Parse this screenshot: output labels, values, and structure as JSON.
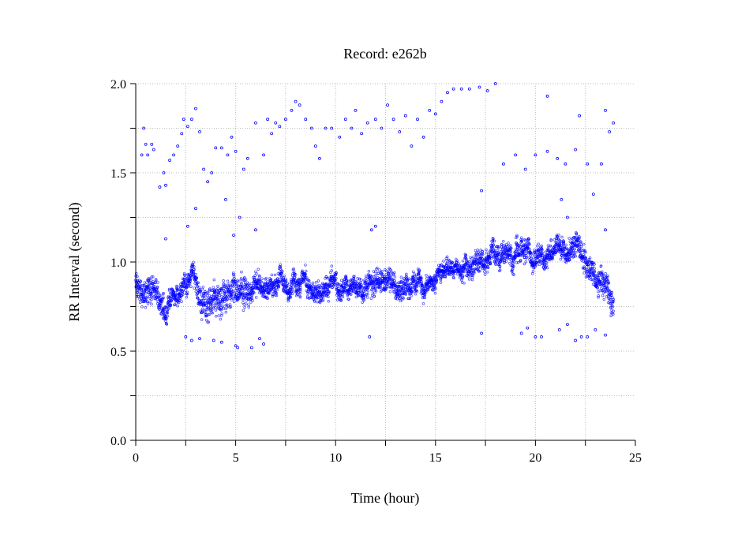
{
  "chart_data": {
    "type": "scatter",
    "title": "Record:  e262b",
    "xlabel": "Time (hour)",
    "ylabel": "RR Interval (second)",
    "xlim": [
      0,
      25
    ],
    "ylim": [
      0.0,
      2.0
    ],
    "x_ticks": [
      "0",
      "5",
      "10",
      "15",
      "20",
      "25"
    ],
    "x_tick_values": [
      0,
      5,
      10,
      15,
      20,
      25
    ],
    "y_ticks": [
      "0.0",
      "0.5",
      "1.0",
      "1.5",
      "2.0"
    ],
    "y_tick_values": [
      0,
      0.5,
      1.0,
      1.5,
      2.0
    ],
    "grid": true,
    "grid_x_step": 2.5,
    "grid_y_step": 0.25,
    "marker_color": "#0000ff",
    "trend_note": "dense RR series: [hour, mean RR, half-spread]",
    "trend": [
      [
        0,
        0.86,
        0.09
      ],
      [
        0.3,
        0.82,
        0.09
      ],
      [
        0.7,
        0.83,
        0.09
      ],
      [
        1.0,
        0.84,
        0.08
      ],
      [
        1.3,
        0.7,
        0.09
      ],
      [
        1.6,
        0.73,
        0.07
      ],
      [
        2.0,
        0.8,
        0.06
      ],
      [
        2.5,
        0.88,
        0.06
      ],
      [
        3.0,
        0.9,
        0.07
      ],
      [
        3.3,
        0.75,
        0.1
      ],
      [
        4.0,
        0.78,
        0.1
      ],
      [
        4.5,
        0.79,
        0.1
      ],
      [
        5.0,
        0.83,
        0.1
      ],
      [
        5.5,
        0.8,
        0.1
      ],
      [
        6.0,
        0.85,
        0.07
      ],
      [
        7.0,
        0.86,
        0.06
      ],
      [
        8.0,
        0.9,
        0.06
      ],
      [
        8.5,
        0.88,
        0.06
      ],
      [
        9.0,
        0.79,
        0.06
      ],
      [
        9.5,
        0.85,
        0.06
      ],
      [
        10.0,
        0.85,
        0.06
      ],
      [
        11.0,
        0.87,
        0.06
      ],
      [
        12.0,
        0.88,
        0.07
      ],
      [
        12.5,
        0.93,
        0.07
      ],
      [
        13.0,
        0.88,
        0.07
      ],
      [
        14.0,
        0.87,
        0.06
      ],
      [
        14.5,
        0.86,
        0.05
      ],
      [
        15.0,
        0.93,
        0.05
      ],
      [
        16.0,
        0.97,
        0.05
      ],
      [
        17.0,
        1.02,
        0.07
      ],
      [
        18.0,
        1.02,
        0.07
      ],
      [
        19.0,
        1.07,
        0.08
      ],
      [
        20.0,
        1.05,
        0.07
      ],
      [
        21.0,
        1.07,
        0.06
      ],
      [
        22.0,
        1.07,
        0.07
      ],
      [
        22.5,
        1.02,
        0.08
      ],
      [
        23.0,
        0.95,
        0.09
      ],
      [
        23.5,
        0.86,
        0.09
      ],
      [
        23.9,
        0.8,
        0.08
      ]
    ],
    "outliers": [
      [
        0.3,
        1.6
      ],
      [
        0.4,
        1.75
      ],
      [
        0.5,
        1.66
      ],
      [
        0.6,
        1.6
      ],
      [
        0.8,
        1.66
      ],
      [
        0.9,
        1.63
      ],
      [
        1.2,
        1.42
      ],
      [
        1.4,
        1.5
      ],
      [
        1.5,
        1.43
      ],
      [
        1.7,
        1.57
      ],
      [
        1.9,
        1.6
      ],
      [
        2.1,
        1.65
      ],
      [
        2.3,
        1.72
      ],
      [
        2.4,
        1.8
      ],
      [
        2.6,
        1.76
      ],
      [
        2.8,
        1.8
      ],
      [
        3.0,
        1.86
      ],
      [
        3.2,
        1.73
      ],
      [
        3.4,
        1.52
      ],
      [
        3.6,
        1.45
      ],
      [
        3.8,
        1.5
      ],
      [
        4.0,
        1.64
      ],
      [
        4.3,
        1.64
      ],
      [
        4.6,
        1.6
      ],
      [
        4.8,
        1.7
      ],
      [
        5.0,
        1.62
      ],
      [
        5.4,
        1.52
      ],
      [
        5.6,
        1.58
      ],
      [
        6.0,
        1.78
      ],
      [
        6.4,
        1.6
      ],
      [
        6.6,
        1.8
      ],
      [
        6.8,
        1.72
      ],
      [
        7.0,
        1.78
      ],
      [
        7.2,
        1.76
      ],
      [
        7.5,
        1.8
      ],
      [
        7.8,
        1.85
      ],
      [
        8.0,
        1.9
      ],
      [
        8.2,
        1.88
      ],
      [
        8.5,
        1.8
      ],
      [
        8.8,
        1.75
      ],
      [
        9.0,
        1.65
      ],
      [
        9.2,
        1.58
      ],
      [
        9.5,
        1.75
      ],
      [
        9.8,
        1.75
      ],
      [
        10.2,
        1.7
      ],
      [
        10.5,
        1.8
      ],
      [
        10.8,
        1.75
      ],
      [
        11.0,
        1.85
      ],
      [
        11.3,
        1.72
      ],
      [
        11.6,
        1.78
      ],
      [
        12.0,
        1.8
      ],
      [
        12.3,
        1.75
      ],
      [
        12.6,
        1.88
      ],
      [
        12.9,
        1.8
      ],
      [
        13.2,
        1.73
      ],
      [
        13.5,
        1.82
      ],
      [
        13.8,
        1.65
      ],
      [
        14.1,
        1.8
      ],
      [
        14.4,
        1.7
      ],
      [
        14.7,
        1.85
      ],
      [
        15.0,
        1.83
      ],
      [
        15.3,
        1.9
      ],
      [
        15.6,
        1.95
      ],
      [
        15.9,
        1.97
      ],
      [
        16.3,
        1.97
      ],
      [
        16.7,
        1.97
      ],
      [
        17.2,
        1.98
      ],
      [
        17.6,
        1.96
      ],
      [
        18.0,
        2.0
      ],
      [
        17.3,
        1.4
      ],
      [
        18.4,
        1.55
      ],
      [
        19.0,
        1.6
      ],
      [
        19.5,
        1.52
      ],
      [
        20.0,
        1.6
      ],
      [
        20.6,
        1.62
      ],
      [
        20.6,
        1.93
      ],
      [
        21.1,
        1.58
      ],
      [
        21.5,
        1.55
      ],
      [
        22.0,
        1.63
      ],
      [
        22.2,
        1.82
      ],
      [
        22.6,
        1.55
      ],
      [
        22.9,
        1.38
      ],
      [
        23.3,
        1.55
      ],
      [
        23.5,
        1.85
      ],
      [
        23.7,
        1.73
      ],
      [
        23.9,
        1.78
      ],
      [
        4.5,
        1.35
      ],
      [
        5.2,
        1.25
      ],
      [
        3.0,
        1.3
      ],
      [
        2.6,
        1.2
      ],
      [
        1.5,
        1.13
      ],
      [
        4.9,
        1.15
      ],
      [
        6.0,
        1.18
      ],
      [
        11.8,
        1.18
      ],
      [
        12.0,
        1.2
      ],
      [
        21.3,
        1.35
      ],
      [
        21.6,
        1.25
      ],
      [
        23.5,
        1.18
      ],
      [
        2.5,
        0.58
      ],
      [
        2.8,
        0.56
      ],
      [
        3.2,
        0.57
      ],
      [
        3.9,
        0.56
      ],
      [
        4.3,
        0.55
      ],
      [
        5.0,
        0.53
      ],
      [
        5.1,
        0.52
      ],
      [
        5.8,
        0.52
      ],
      [
        6.2,
        0.57
      ],
      [
        6.4,
        0.54
      ],
      [
        11.7,
        0.58
      ],
      [
        17.3,
        0.6
      ],
      [
        19.3,
        0.6
      ],
      [
        19.6,
        0.63
      ],
      [
        20.0,
        0.58
      ],
      [
        20.3,
        0.58
      ],
      [
        21.2,
        0.62
      ],
      [
        21.6,
        0.65
      ],
      [
        22.0,
        0.56
      ],
      [
        22.3,
        0.58
      ],
      [
        22.6,
        0.58
      ],
      [
        23.0,
        0.62
      ],
      [
        23.5,
        0.59
      ]
    ]
  }
}
